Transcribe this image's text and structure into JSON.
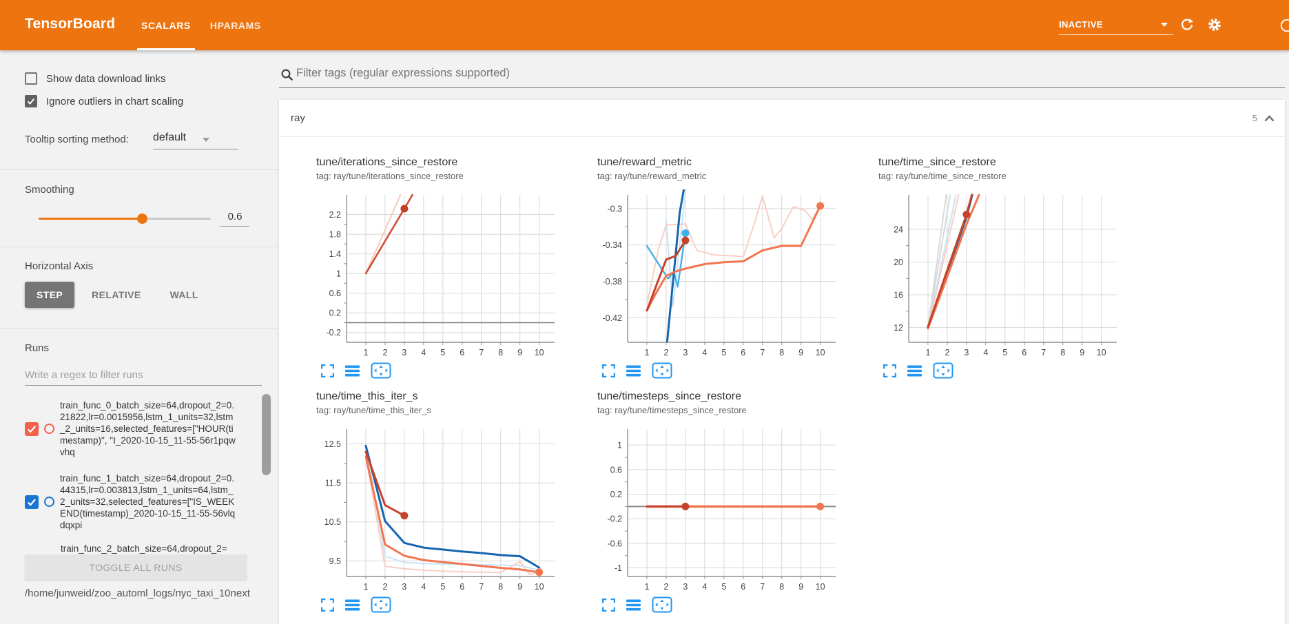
{
  "header": {
    "title": "TensorBoard",
    "tabs": [
      {
        "label": "SCALARS",
        "active": true
      },
      {
        "label": "HPARAMS",
        "active": false
      }
    ],
    "status_label": "INACTIVE"
  },
  "colors": {
    "header_orange": "#ee7410",
    "icon_blue": "#2196f3",
    "run_orange": "#f4604a",
    "run_blue": "#1976d2"
  },
  "sidebar": {
    "checkboxes": [
      {
        "label": "Show data download links",
        "checked": false
      },
      {
        "label": "Ignore outliers in chart scaling",
        "checked": true
      }
    ],
    "tooltip_sorting": {
      "label": "Tooltip sorting method:",
      "value": "default"
    },
    "smoothing": {
      "label": "Smoothing",
      "value": "0.6",
      "percent": 60
    },
    "horizontal_axis": {
      "label": "Horizontal Axis",
      "options": [
        {
          "label": "STEP",
          "active": true
        },
        {
          "label": "RELATIVE",
          "active": false
        },
        {
          "label": "WALL",
          "active": false
        }
      ]
    },
    "runs": {
      "label": "Runs",
      "filter_placeholder": "Write a regex to filter runs",
      "items": [
        {
          "text": "train_func_0_batch_size=64,dropout_2=0.21822,lr=0.0015956,lstm_1_units=32,lstm_2_units=16,selected_features=[\"HOUR(timestamp)\", \"I_2020-10-15_11-55-56r1pqwvhq",
          "checked": true,
          "color": "#f4604a"
        },
        {
          "text": "train_func_1_batch_size=64,dropout_2=0.44315,lr=0.003813,lstm_1_units=64,lstm_2_units=32,selected_features=[\"IS_WEEKEND(timestamp)_2020-10-15_11-55-56vlqdqxpi",
          "checked": true,
          "color": "#1976d2"
        },
        {
          "text": "train_func_2_batch_size=64,dropout_2=",
          "checked": false,
          "color": "#9e9e9e",
          "partial": true
        }
      ],
      "toggle_button": "TOGGLE ALL RUNS",
      "log_dir": "/home/junweid/zoo_automl_logs/nyc_taxi_10next"
    }
  },
  "main": {
    "filter_placeholder": "Filter tags (regular expressions supported)",
    "section": {
      "name": "ray",
      "count": "5"
    }
  },
  "chart_data": [
    {
      "type": "line",
      "title": "tune/iterations_since_restore",
      "tag": "tag: ray/tune/iterations_since_restore",
      "xlabel": "step",
      "grid": true,
      "xlim": [
        0,
        10.8
      ],
      "ylim": [
        -0.4,
        2.6
      ],
      "yticks": [
        "2.2",
        "1.8",
        "1.4",
        "1",
        "0.6",
        "0.2",
        "-0.2"
      ],
      "xticks": [
        "1",
        "2",
        "3",
        "4",
        "5",
        "6",
        "7",
        "8",
        "9",
        "10"
      ],
      "series": [
        {
          "name": "run-red-raw",
          "color": "#f7c9bc",
          "width": 2,
          "points": [
            [
              1,
              1
            ],
            [
              2.8,
              2.6
            ]
          ]
        },
        {
          "name": "zero-baseline",
          "color": "#7c7c7c",
          "width": 1.5,
          "points": [
            [
              0,
              0
            ],
            [
              10.8,
              0
            ]
          ]
        },
        {
          "name": "run-red-smoothed",
          "color": "#d0492f",
          "width": 2.5,
          "points": [
            [
              1,
              1
            ],
            [
              3,
              2.32
            ],
            [
              3.42,
              2.6
            ]
          ]
        }
      ],
      "dots": [
        {
          "x": 3,
          "y": 2.32,
          "color": "#c43d28"
        }
      ]
    },
    {
      "type": "line",
      "title": "tune/reward_metric",
      "tag": "tag: ray/tune/reward_metric",
      "xlabel": "step",
      "grid": true,
      "xlim": [
        0,
        10.8
      ],
      "ylim": [
        -0.447,
        -0.285
      ],
      "yticks": [
        "-0.3",
        "-0.34",
        "-0.38",
        "-0.42"
      ],
      "xticks": [
        "1",
        "2",
        "3",
        "4",
        "5",
        "6",
        "7",
        "8",
        "9",
        "10"
      ],
      "series": [
        {
          "name": "run-blue-raw",
          "color": "#c7e3f7",
          "width": 2,
          "points": [
            [
              2,
              -0.312
            ],
            [
              2.35,
              -0.408
            ],
            [
              3.05,
              -0.272
            ]
          ]
        },
        {
          "name": "run-red-raw",
          "color": "#f8cfc2",
          "width": 2,
          "points": [
            [
              1,
              -0.405
            ],
            [
              1.6,
              -0.345
            ],
            [
              2,
              -0.318
            ],
            [
              3,
              -0.317
            ],
            [
              3.6,
              -0.346
            ],
            [
              4.5,
              -0.351
            ],
            [
              5.5,
              -0.352
            ],
            [
              6,
              -0.353
            ],
            [
              6.6,
              -0.315
            ],
            [
              7,
              -0.286
            ],
            [
              7.6,
              -0.332
            ],
            [
              8,
              -0.322
            ],
            [
              8.6,
              -0.298
            ],
            [
              9.2,
              -0.302
            ],
            [
              9.6,
              -0.312
            ],
            [
              10,
              -0.297
            ]
          ]
        },
        {
          "name": "run-blue-mid",
          "color": "#49b1e8",
          "width": 2.5,
          "points": [
            [
              1,
              -0.341
            ],
            [
              2.1,
              -0.377
            ],
            [
              2.4,
              -0.37
            ],
            [
              2.6,
              -0.386
            ],
            [
              3,
              -0.327
            ]
          ]
        },
        {
          "name": "run-blue-smoothed",
          "color": "#1565b0",
          "width": 3,
          "points": [
            [
              2.05,
              -0.447
            ],
            [
              2.45,
              -0.36
            ],
            [
              2.7,
              -0.305
            ],
            [
              3.05,
              -0.263
            ]
          ]
        },
        {
          "name": "run-orange-smoothed",
          "color": "#f1764f",
          "width": 3,
          "points": [
            [
              1,
              -0.412
            ],
            [
              1.5,
              -0.392
            ],
            [
              2,
              -0.374
            ],
            [
              2.5,
              -0.369
            ],
            [
              3,
              -0.366
            ],
            [
              4,
              -0.361
            ],
            [
              5,
              -0.359
            ],
            [
              6,
              -0.358
            ],
            [
              7,
              -0.346
            ],
            [
              8,
              -0.341
            ],
            [
              9,
              -0.341
            ],
            [
              10,
              -0.297
            ]
          ]
        },
        {
          "name": "run-red-smoothed",
          "color": "#c5432c",
          "width": 3,
          "points": [
            [
              1,
              -0.412
            ],
            [
              1.5,
              -0.384
            ],
            [
              2,
              -0.356
            ],
            [
              2.5,
              -0.352
            ],
            [
              3,
              -0.335
            ]
          ]
        }
      ],
      "dots": [
        {
          "x": 3,
          "y": -0.327,
          "color": "#3eb0ea"
        },
        {
          "x": 3,
          "y": -0.335,
          "color": "#c5432c"
        },
        {
          "x": 10,
          "y": -0.297,
          "color": "#f1764f"
        }
      ]
    },
    {
      "type": "line",
      "title": "tune/time_since_restore",
      "tag": "tag: ray/tune/time_since_restore",
      "xlabel": "step",
      "grid": true,
      "xlim": [
        0,
        10.8
      ],
      "ylim": [
        10.2,
        28.2
      ],
      "yticks": [
        "24",
        "20",
        "16",
        "12"
      ],
      "xticks": [
        "1",
        "2",
        "3",
        "4",
        "5",
        "6",
        "7",
        "8",
        "9",
        "10"
      ],
      "series": [
        {
          "name": "run-gray-raw-a",
          "color": "#d9d9de",
          "width": 2,
          "points": [
            [
              1,
              12
            ],
            [
              1.95,
              28.2
            ]
          ]
        },
        {
          "name": "run-gray-raw-b",
          "color": "#d9d9de",
          "width": 2,
          "points": [
            [
              1,
              12
            ],
            [
              2.15,
              28.2
            ]
          ]
        },
        {
          "name": "run-blue-raw",
          "color": "#c7e3f7",
          "width": 2,
          "points": [
            [
              1,
              12
            ],
            [
              2.45,
              28.2
            ]
          ]
        },
        {
          "name": "run-red-raw",
          "color": "#f8cfc2",
          "width": 2,
          "points": [
            [
              1,
              12
            ],
            [
              2.6,
              28.2
            ]
          ]
        },
        {
          "name": "run-blue-smoothed",
          "color": "#1565b0",
          "width": 3,
          "points": [
            [
              1,
              12
            ],
            [
              2,
              18.7
            ],
            [
              3,
              25.5
            ],
            [
              3.3,
              28.2
            ]
          ]
        },
        {
          "name": "run-orange-smoothed",
          "color": "#f1764f",
          "width": 3,
          "points": [
            [
              1,
              11.9
            ],
            [
              2,
              18.2
            ],
            [
              3,
              24.6
            ],
            [
              3.65,
              28.2
            ]
          ]
        },
        {
          "name": "run-red-smoothed",
          "color": "#c5432c",
          "width": 3,
          "points": [
            [
              1,
              12.1
            ],
            [
              2,
              19
            ],
            [
              3,
              25.8
            ],
            [
              3.28,
              28.2
            ]
          ]
        }
      ],
      "dots": [
        {
          "x": 3,
          "y": 25.8,
          "color": "#c5432c"
        }
      ]
    },
    {
      "type": "line",
      "title": "tune/time_this_iter_s",
      "tag": "tag: ray/tune/time_this_iter_s",
      "xlabel": "step",
      "grid": true,
      "xlim": [
        0,
        10.8
      ],
      "ylim": [
        9.1,
        12.88
      ],
      "yticks": [
        "12.5",
        "11.5",
        "10.5",
        "9.5"
      ],
      "xticks": [
        "1",
        "2",
        "3",
        "4",
        "5",
        "6",
        "7",
        "8",
        "9",
        "10"
      ],
      "series": [
        {
          "name": "run-blue-raw",
          "color": "#c7e3f7",
          "width": 2,
          "points": [
            [
              1,
              12.45
            ],
            [
              2,
              9.62
            ],
            [
              3,
              9.46
            ],
            [
              4,
              9.43
            ],
            [
              5,
              9.42
            ],
            [
              6,
              9.41
            ],
            [
              7,
              9.4
            ],
            [
              8,
              9.39
            ],
            [
              9,
              9.38
            ],
            [
              10,
              9.26
            ]
          ]
        },
        {
          "name": "run-red-raw",
          "color": "#f8cfc2",
          "width": 2,
          "points": [
            [
              1,
              12.18
            ],
            [
              2,
              9.36
            ],
            [
              3,
              9.3
            ],
            [
              4,
              9.26
            ],
            [
              5,
              9.24
            ],
            [
              6,
              9.22
            ],
            [
              7,
              9.21
            ],
            [
              8,
              9.2
            ],
            [
              9,
              9.48
            ],
            [
              9.5,
              9.15
            ],
            [
              10,
              9.22
            ]
          ]
        },
        {
          "name": "run-blue-smoothed",
          "color": "#1565b0",
          "width": 3,
          "points": [
            [
              1,
              12.45
            ],
            [
              2,
              10.52
            ],
            [
              3,
              9.96
            ],
            [
              4,
              9.84
            ],
            [
              5,
              9.79
            ],
            [
              6,
              9.74
            ],
            [
              7,
              9.7
            ],
            [
              8,
              9.65
            ],
            [
              9,
              9.62
            ],
            [
              10,
              9.33
            ]
          ]
        },
        {
          "name": "run-orange-smoothed",
          "color": "#f1764f",
          "width": 3,
          "points": [
            [
              1,
              12.18
            ],
            [
              2,
              9.92
            ],
            [
              3,
              9.63
            ],
            [
              4,
              9.52
            ],
            [
              5,
              9.47
            ],
            [
              6,
              9.42
            ],
            [
              7,
              9.37
            ],
            [
              8,
              9.32
            ],
            [
              9,
              9.28
            ],
            [
              10,
              9.21
            ]
          ]
        },
        {
          "name": "run-red-smoothed",
          "color": "#c5432c",
          "width": 3,
          "points": [
            [
              1,
              12.3
            ],
            [
              2,
              10.93
            ],
            [
              3,
              10.66
            ]
          ]
        }
      ],
      "dots": [
        {
          "x": 3,
          "y": 10.66,
          "color": "#c5432c"
        },
        {
          "x": 10,
          "y": 9.21,
          "color": "#f1764f"
        }
      ]
    },
    {
      "type": "line",
      "title": "tune/timesteps_since_restore",
      "tag": "tag: ray/tune/timesteps_since_restore",
      "xlabel": "step",
      "grid": true,
      "xlim": [
        0,
        10.8
      ],
      "ylim": [
        -1.14,
        1.26
      ],
      "yticks": [
        "1",
        "0.6",
        "0.2",
        "-0.2",
        "-0.6",
        "-1"
      ],
      "xticks": [
        "1",
        "2",
        "3",
        "4",
        "5",
        "6",
        "7",
        "8",
        "9",
        "10"
      ],
      "series": [
        {
          "name": "zero-baseline",
          "color": "#8a8a8a",
          "width": 2,
          "points": [
            [
              0,
              0
            ],
            [
              10.8,
              0
            ]
          ]
        },
        {
          "name": "run-orange-smoothed",
          "color": "#f1764f",
          "width": 3.5,
          "points": [
            [
              1,
              0
            ],
            [
              10,
              0
            ]
          ]
        },
        {
          "name": "run-red-smoothed",
          "color": "#c5432c",
          "width": 3,
          "points": [
            [
              1,
              0
            ],
            [
              3,
              0
            ]
          ]
        }
      ],
      "dots": [
        {
          "x": 3,
          "y": 0,
          "color": "#c5432c"
        },
        {
          "x": 10,
          "y": 0,
          "color": "#f1764f"
        }
      ]
    }
  ]
}
